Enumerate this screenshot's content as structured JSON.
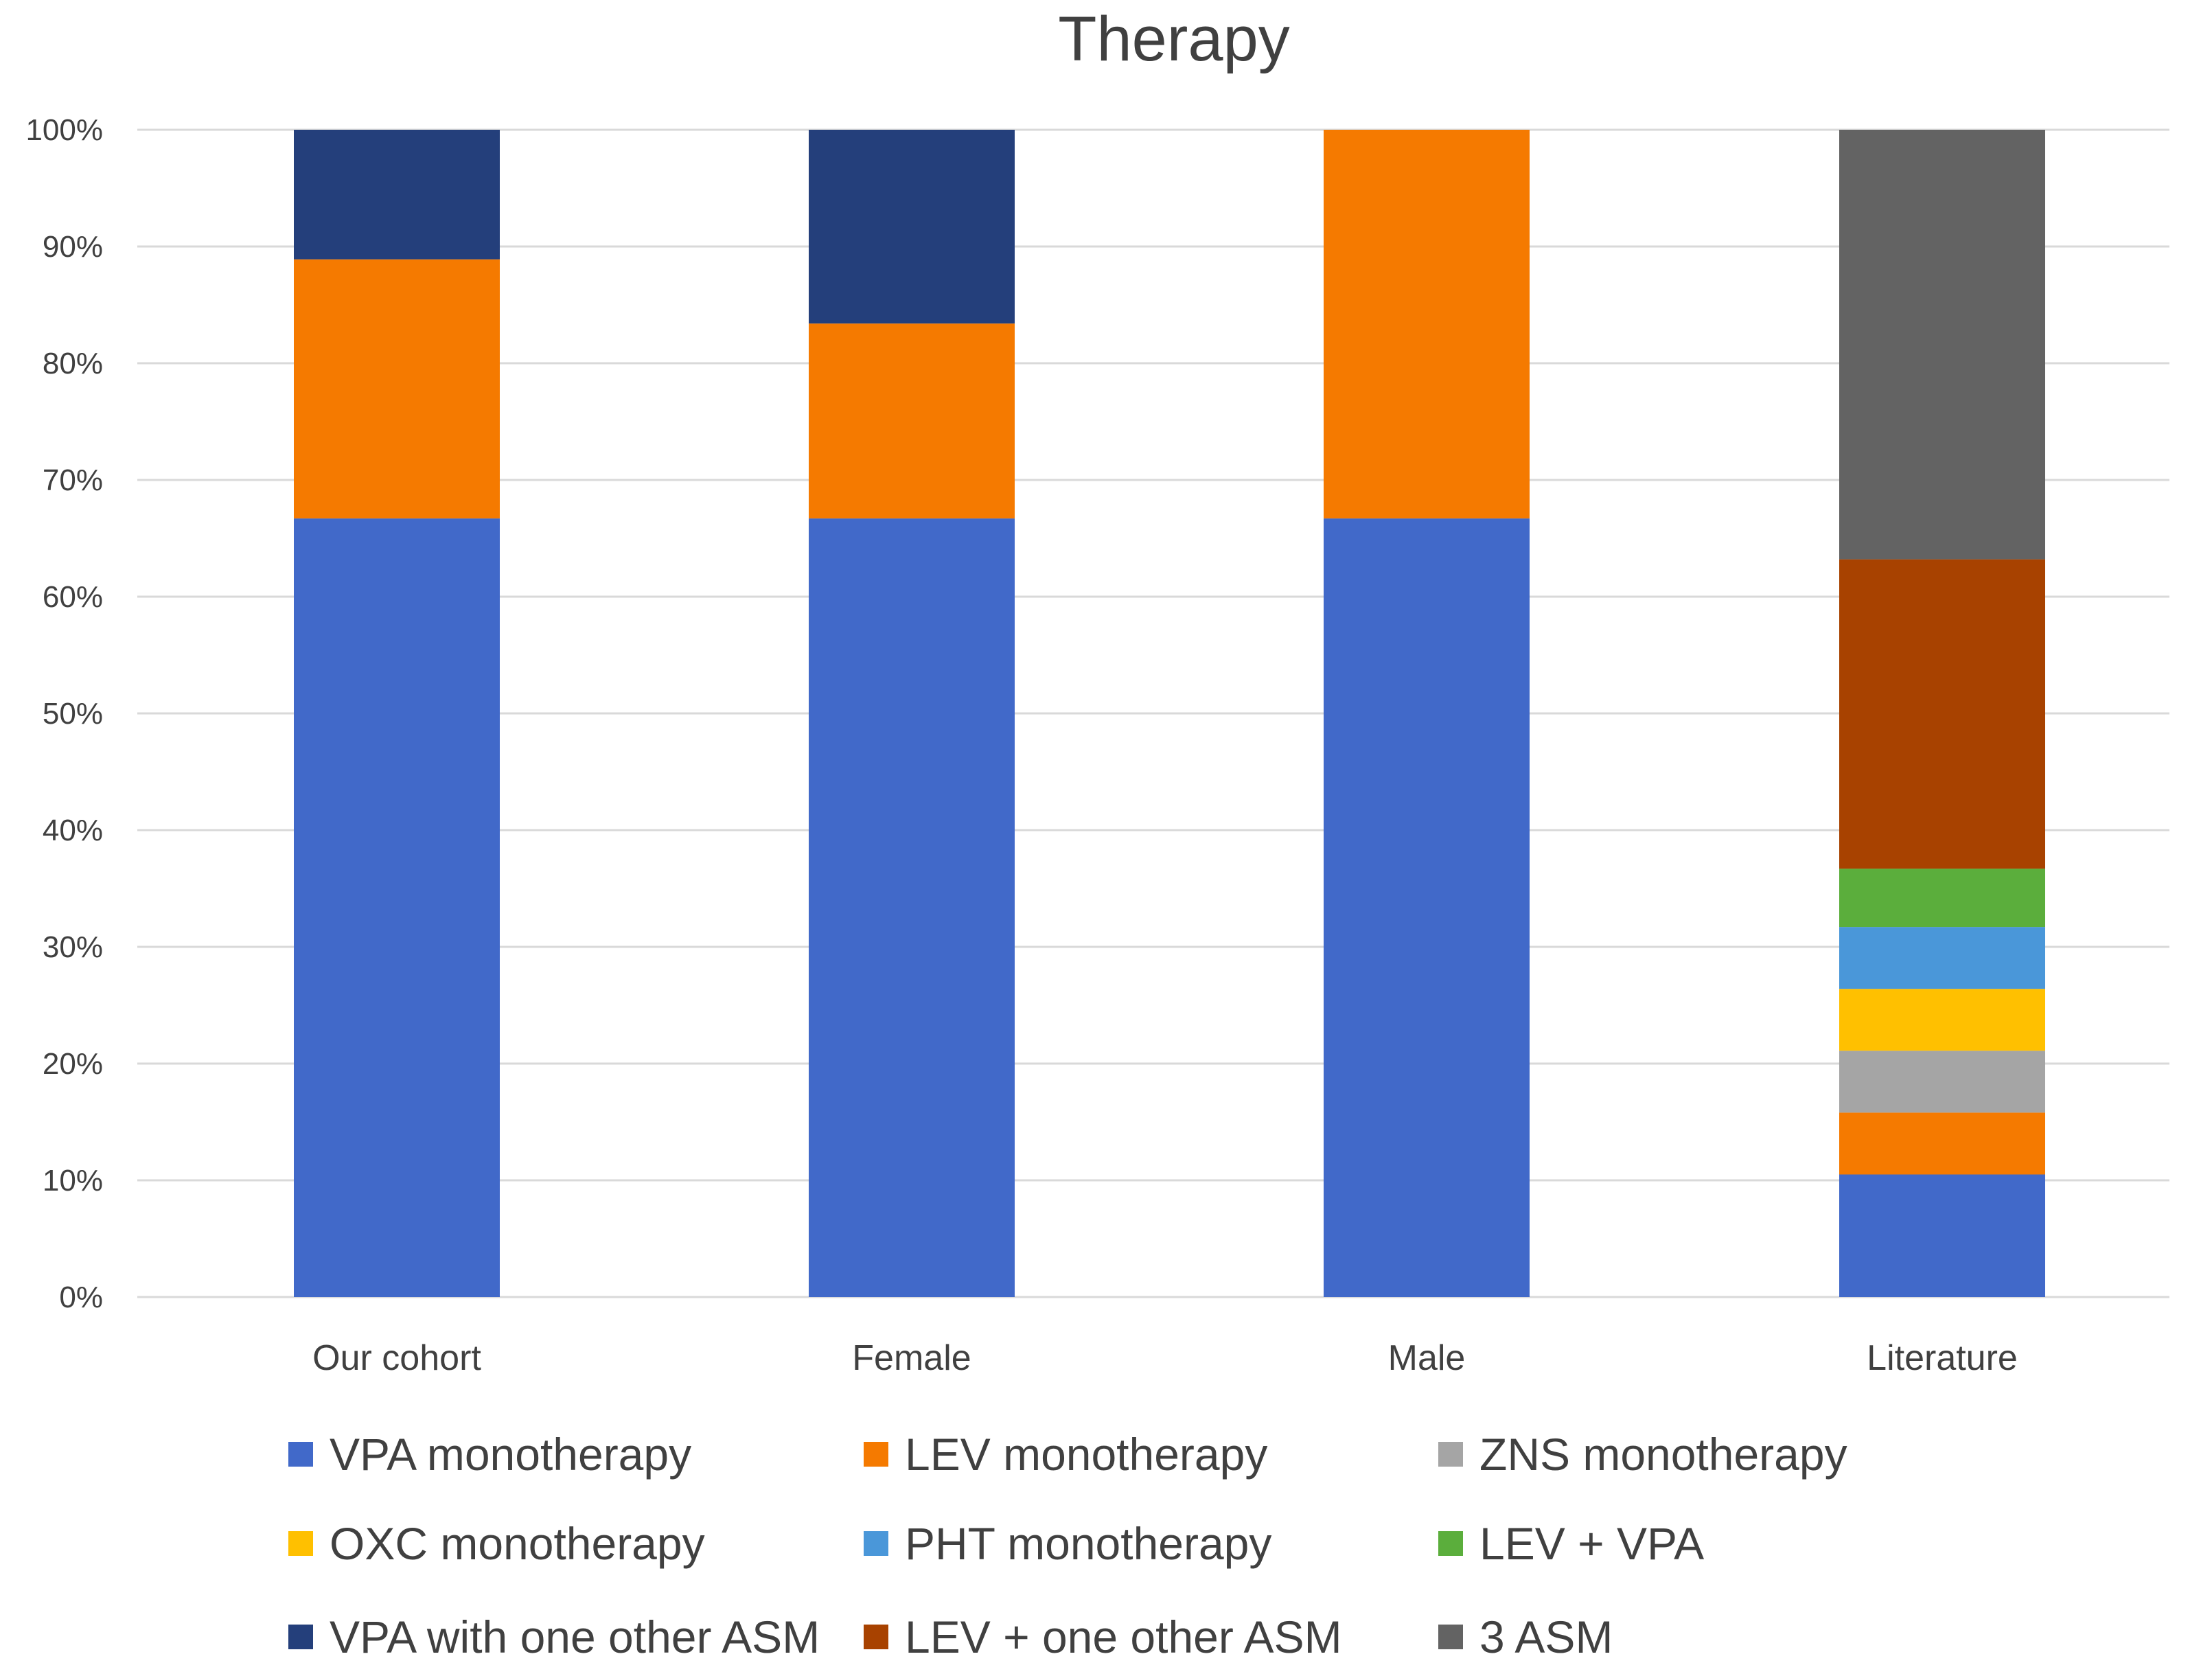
{
  "chart_data": {
    "type": "bar",
    "stacked": true,
    "percent": true,
    "title": "Therapy",
    "xlabel": "",
    "ylabel": "",
    "ylim": [
      0,
      100
    ],
    "ytick_values": [
      0,
      10,
      20,
      30,
      40,
      50,
      60,
      70,
      80,
      90,
      100
    ],
    "ytick_labels": [
      "0%",
      "10%",
      "20%",
      "30%",
      "40%",
      "50%",
      "60%",
      "70%",
      "80%",
      "90%",
      "100%"
    ],
    "grid": true,
    "legend_position": "bottom",
    "categories": [
      "Our cohort",
      "Female",
      "Male",
      "Literature"
    ],
    "series": [
      {
        "name": "VPA monotherapy",
        "color": "#4169C9",
        "values": [
          66.7,
          66.7,
          66.7,
          10.5
        ]
      },
      {
        "name": "LEV monotherapy",
        "color": "#F57A00",
        "values": [
          22.2,
          16.7,
          33.3,
          5.3
        ]
      },
      {
        "name": "ZNS monotherapy",
        "color": "#A5A5A5",
        "values": [
          0,
          0,
          0,
          5.3
        ]
      },
      {
        "name": "OXC monotherapy",
        "color": "#FFC000",
        "values": [
          0,
          0,
          0,
          5.3
        ]
      },
      {
        "name": "PHT monotherapy",
        "color": "#4A97D9",
        "values": [
          0,
          0,
          0,
          5.3
        ]
      },
      {
        "name": "LEV + VPA",
        "color": "#5BAE3C",
        "values": [
          0,
          0,
          0,
          5.0
        ]
      },
      {
        "name": "VPA with one other ASM",
        "color": "#243F7B",
        "values": [
          11.1,
          16.6,
          0,
          0
        ]
      },
      {
        "name": "LEV + one other ASM",
        "color": "#A84200",
        "values": [
          0,
          0,
          0,
          26.5
        ]
      },
      {
        "name": "3 ASM",
        "color": "#636363",
        "values": [
          0,
          0,
          0,
          36.8
        ]
      }
    ]
  }
}
